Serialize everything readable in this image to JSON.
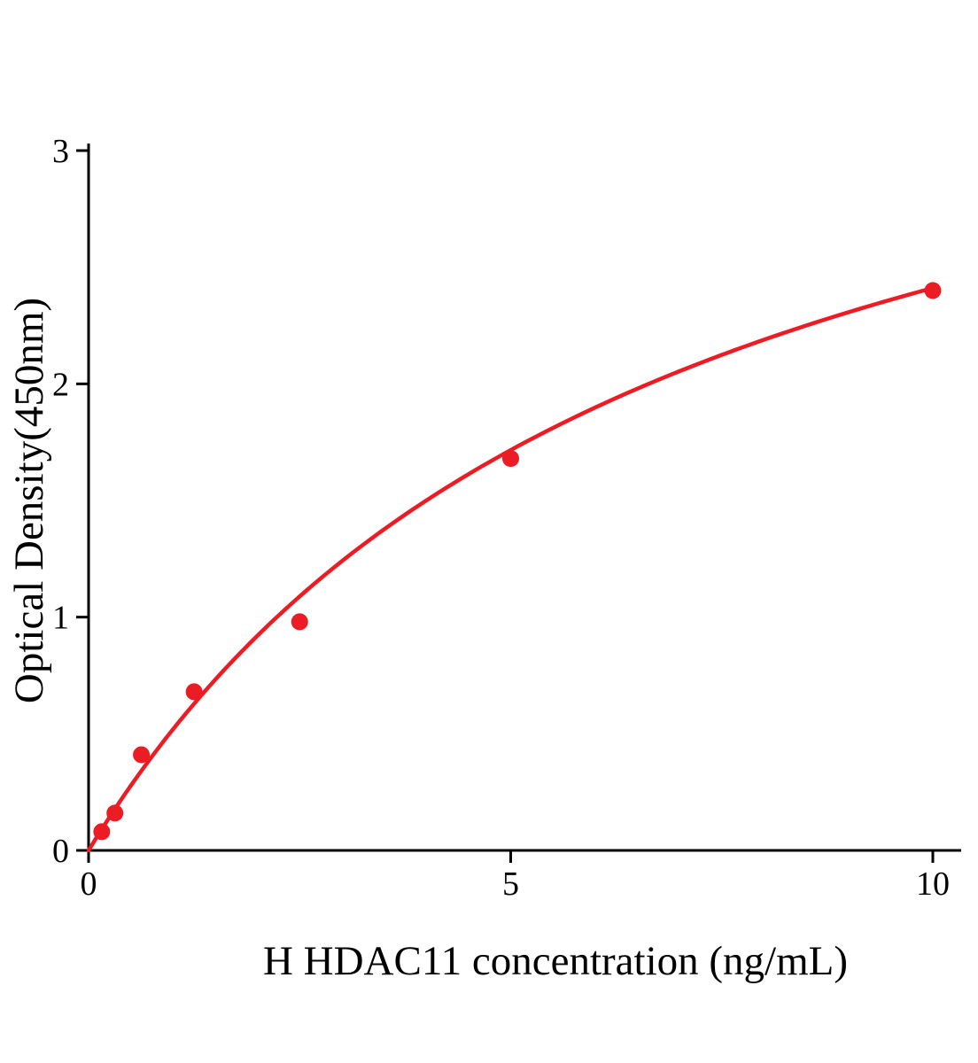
{
  "page": {
    "background_color": "#ffffff",
    "axis_color": "#000000"
  },
  "chart_data": {
    "type": "scatter",
    "title": "",
    "xlabel": "H HDAC11 concentration (ng/mL)",
    "ylabel": "Optical Density(450nm)",
    "series": [
      {
        "name": "standard-curve",
        "color": "#ec1c24",
        "x": [
          0.156,
          0.312,
          0.625,
          1.25,
          2.5,
          5,
          10
        ],
        "y": [
          0.08,
          0.16,
          0.41,
          0.68,
          0.98,
          1.68,
          2.4
        ]
      }
    ],
    "fit": {
      "type": "saturation",
      "vmax": 4.05,
      "km": 6.8,
      "color": "#ec1c24"
    },
    "xlim": [
      0,
      10
    ],
    "ylim": [
      0,
      3
    ],
    "x_ticks": [
      0,
      5,
      10
    ],
    "y_ticks": [
      0,
      1,
      2,
      3
    ],
    "grid": false,
    "legend": "none"
  }
}
